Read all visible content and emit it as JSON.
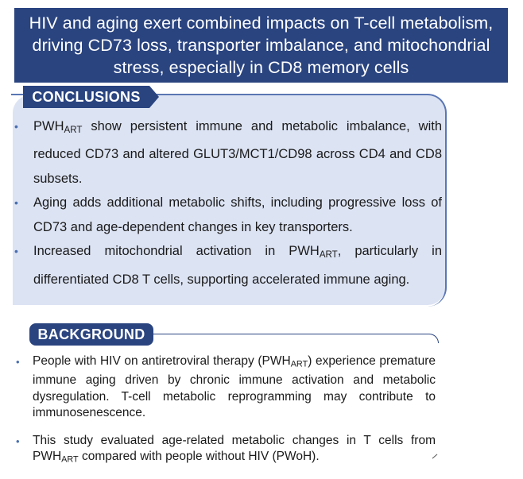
{
  "title": "HIV and aging exert combined impacts on T-cell metabolism, driving CD73 loss, transporter imbalance, and mitochondrial stress, especially in CD8 memory cells",
  "conclusions": {
    "heading": "CONCLUSIONS",
    "items": [
      {
        "pre": "PWH",
        "sub": "ART",
        "post": " show persistent immune and metabolic imbalance, with reduced CD73 and altered GLUT3/MCT1/CD98 across CD4 and CD8 subsets."
      },
      {
        "pre": "Aging adds additional metabolic shifts, including progressive loss of CD73 and age-dependent changes in key transporters.",
        "sub": "",
        "post": ""
      },
      {
        "pre": "Increased mitochondrial activation in PWH",
        "sub": "ART",
        "post": ", particularly in differentiated CD8 T cells, supporting accelerated immune aging."
      }
    ]
  },
  "background": {
    "heading": "BACKGROUND",
    "items": [
      {
        "pre": "People with HIV on antiretroviral therapy (PWH",
        "sub": "ART",
        "post": ") experience premature immune aging driven by chronic immune activation and metabolic dysregulation. T-cell metabolic reprogramming may contribute to immunosenescence."
      },
      {
        "pre": "This study evaluated age-related metabolic changes in T cells from PWH",
        "sub": "ART",
        "post": " compared with people without HIV (PWoH)."
      }
    ]
  },
  "bullet_symbol": "•",
  "colors": {
    "banner": "#2a4480",
    "panel": "#dce3f3",
    "bullet": "#4a6fb0"
  }
}
